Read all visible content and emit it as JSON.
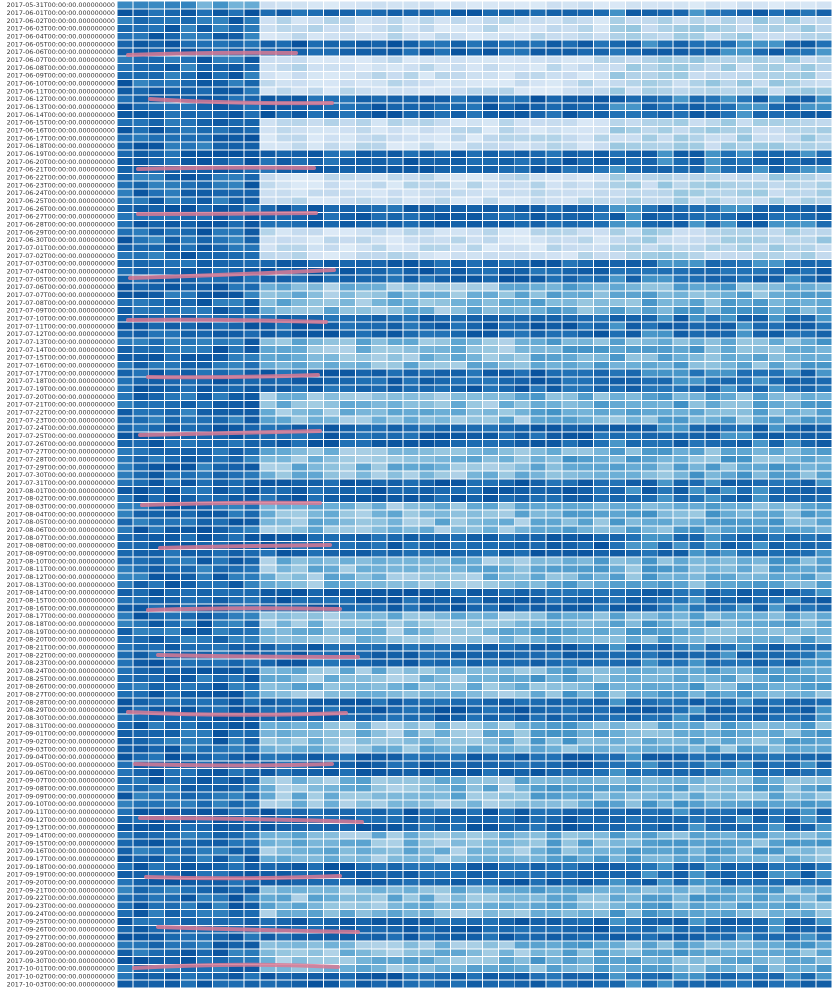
{
  "chart_data": {
    "type": "heatmap",
    "title": "",
    "xlabel": "",
    "ylabel": "",
    "colormap": "Blues",
    "colors": {
      "low": "#f7fbff",
      "mid": "#6baed6",
      "high": "#08519c",
      "cell_border": "#ffffff",
      "annotation": "#d97a94"
    },
    "y_categories": [
      "2017-05-31T00:00:00.000000000",
      "2017-06-01T00:00:00.000000000",
      "2017-06-02T00:00:00.000000000",
      "2017-06-03T00:00:00.000000000",
      "2017-06-04T00:00:00.000000000",
      "2017-06-05T00:00:00.000000000",
      "2017-06-06T00:00:00.000000000",
      "2017-06-07T00:00:00.000000000",
      "2017-06-08T00:00:00.000000000",
      "2017-06-09T00:00:00.000000000",
      "2017-06-10T00:00:00.000000000",
      "2017-06-11T00:00:00.000000000",
      "2017-06-12T00:00:00.000000000",
      "2017-06-13T00:00:00.000000000",
      "2017-06-14T00:00:00.000000000",
      "2017-06-15T00:00:00.000000000",
      "2017-06-16T00:00:00.000000000",
      "2017-06-17T00:00:00.000000000",
      "2017-06-18T00:00:00.000000000",
      "2017-06-19T00:00:00.000000000",
      "2017-06-20T00:00:00.000000000",
      "2017-06-21T00:00:00.000000000",
      "2017-06-22T00:00:00.000000000",
      "2017-06-23T00:00:00.000000000",
      "2017-06-24T00:00:00.000000000",
      "2017-06-25T00:00:00.000000000",
      "2017-06-26T00:00:00.000000000",
      "2017-06-27T00:00:00.000000000",
      "2017-06-28T00:00:00.000000000",
      "2017-06-29T00:00:00.000000000",
      "2017-06-30T00:00:00.000000000",
      "2017-07-01T00:00:00.000000000",
      "2017-07-02T00:00:00.000000000",
      "2017-07-03T00:00:00.000000000",
      "2017-07-04T00:00:00.000000000",
      "2017-07-05T00:00:00.000000000",
      "2017-07-06T00:00:00.000000000",
      "2017-07-07T00:00:00.000000000",
      "2017-07-08T00:00:00.000000000",
      "2017-07-09T00:00:00.000000000",
      "2017-07-10T00:00:00.000000000",
      "2017-07-11T00:00:00.000000000",
      "2017-07-12T00:00:00.000000000",
      "2017-07-13T00:00:00.000000000",
      "2017-07-14T00:00:00.000000000",
      "2017-07-15T00:00:00.000000000",
      "2017-07-16T00:00:00.000000000",
      "2017-07-17T00:00:00.000000000",
      "2017-07-18T00:00:00.000000000",
      "2017-07-19T00:00:00.000000000",
      "2017-07-20T00:00:00.000000000",
      "2017-07-21T00:00:00.000000000",
      "2017-07-22T00:00:00.000000000",
      "2017-07-23T00:00:00.000000000",
      "2017-07-24T00:00:00.000000000",
      "2017-07-25T00:00:00.000000000",
      "2017-07-26T00:00:00.000000000",
      "2017-07-27T00:00:00.000000000",
      "2017-07-28T00:00:00.000000000",
      "2017-07-29T00:00:00.000000000",
      "2017-07-30T00:00:00.000000000",
      "2017-07-31T00:00:00.000000000",
      "2017-08-01T00:00:00.000000000",
      "2017-08-02T00:00:00.000000000",
      "2017-08-03T00:00:00.000000000",
      "2017-08-04T00:00:00.000000000",
      "2017-08-05T00:00:00.000000000",
      "2017-08-06T00:00:00.000000000",
      "2017-08-07T00:00:00.000000000",
      "2017-08-08T00:00:00.000000000",
      "2017-08-09T00:00:00.000000000",
      "2017-08-10T00:00:00.000000000",
      "2017-08-11T00:00:00.000000000",
      "2017-08-12T00:00:00.000000000",
      "2017-08-13T00:00:00.000000000",
      "2017-08-14T00:00:00.000000000",
      "2017-08-15T00:00:00.000000000",
      "2017-08-16T00:00:00.000000000",
      "2017-08-17T00:00:00.000000000",
      "2017-08-18T00:00:00.000000000",
      "2017-08-19T00:00:00.000000000",
      "2017-08-20T00:00:00.000000000",
      "2017-08-21T00:00:00.000000000",
      "2017-08-22T00:00:00.000000000",
      "2017-08-23T00:00:00.000000000",
      "2017-08-24T00:00:00.000000000",
      "2017-08-25T00:00:00.000000000",
      "2017-08-26T00:00:00.000000000",
      "2017-08-27T00:00:00.000000000",
      "2017-08-28T00:00:00.000000000",
      "2017-08-29T00:00:00.000000000",
      "2017-08-30T00:00:00.000000000",
      "2017-08-31T00:00:00.000000000",
      "2017-09-01T00:00:00.000000000",
      "2017-09-02T00:00:00.000000000",
      "2017-09-03T00:00:00.000000000",
      "2017-09-04T00:00:00.000000000",
      "2017-09-05T00:00:00.000000000",
      "2017-09-06T00:00:00.000000000",
      "2017-09-07T00:00:00.000000000",
      "2017-09-08T00:00:00.000000000",
      "2017-09-09T00:00:00.000000000",
      "2017-09-10T00:00:00.000000000",
      "2017-09-11T00:00:00.000000000",
      "2017-09-12T00:00:00.000000000",
      "2017-09-13T00:00:00.000000000",
      "2017-09-14T00:00:00.000000000",
      "2017-09-15T00:00:00.000000000",
      "2017-09-16T00:00:00.000000000",
      "2017-09-17T00:00:00.000000000",
      "2017-09-18T00:00:00.000000000",
      "2017-09-19T00:00:00.000000000",
      "2017-09-20T00:00:00.000000000",
      "2017-09-21T00:00:00.000000000",
      "2017-09-22T00:00:00.000000000",
      "2017-09-23T00:00:00.000000000",
      "2017-09-24T00:00:00.000000000",
      "2017-09-25T00:00:00.000000000",
      "2017-09-26T00:00:00.000000000",
      "2017-09-27T00:00:00.000000000",
      "2017-09-28T00:00:00.000000000",
      "2017-09-29T00:00:00.000000000",
      "2017-09-30T00:00:00.000000000",
      "2017-10-01T00:00:00.000000000",
      "2017-10-02T00:00:00.000000000",
      "2017-10-03T00:00:00.000000000"
    ],
    "column_count": 45,
    "value_scale": "0 = lightest blue, 1 = darkest blue (no colorbar shown)",
    "row_profiles": [
      "1111100000000000000000000000000000000000000000",
      "d",
      "l",
      "l",
      "l",
      "d",
      "d",
      "l",
      "l",
      "l",
      "l",
      "l",
      "d",
      "d",
      "d",
      "l",
      "l",
      "l",
      "l",
      "d",
      "d",
      "d",
      "l",
      "l",
      "l",
      "l",
      "d",
      "d",
      "d",
      "l",
      "l",
      "l",
      "l",
      "d",
      "d",
      "d",
      "m",
      "m",
      "m",
      "m",
      "d",
      "d",
      "d",
      "m",
      "m",
      "m",
      "m",
      "d",
      "d",
      "d",
      "m",
      "m",
      "m",
      "m",
      "d",
      "d",
      "d",
      "m",
      "m",
      "m",
      "m",
      "d",
      "d",
      "d",
      "m",
      "m",
      "m",
      "m",
      "d",
      "d",
      "d",
      "m",
      "m",
      "m",
      "m",
      "d",
      "d",
      "d",
      "m",
      "m",
      "m",
      "m",
      "d",
      "d",
      "d",
      "m",
      "m",
      "m",
      "m",
      "d",
      "d",
      "d",
      "m",
      "m",
      "m",
      "m",
      "d",
      "d",
      "d",
      "m",
      "m",
      "m",
      "m",
      "d",
      "d",
      "d",
      "m",
      "m",
      "m",
      "m",
      "d",
      "d",
      "d",
      "m",
      "m",
      "m",
      "m",
      "d",
      "d",
      "d",
      "m",
      "m",
      "m",
      "m",
      "d",
      "d",
      "d",
      "m",
      "m"
    ],
    "profile_legend": {
      "d": "whole row dark (high values across all columns)",
      "l": "first ~9 columns dark, remaining columns very light (low values)",
      "m": "first ~9 columns dark, remaining columns medium blue"
    },
    "annotations_description": "hand-drawn pink strokes over the left columns on selected rows"
  }
}
